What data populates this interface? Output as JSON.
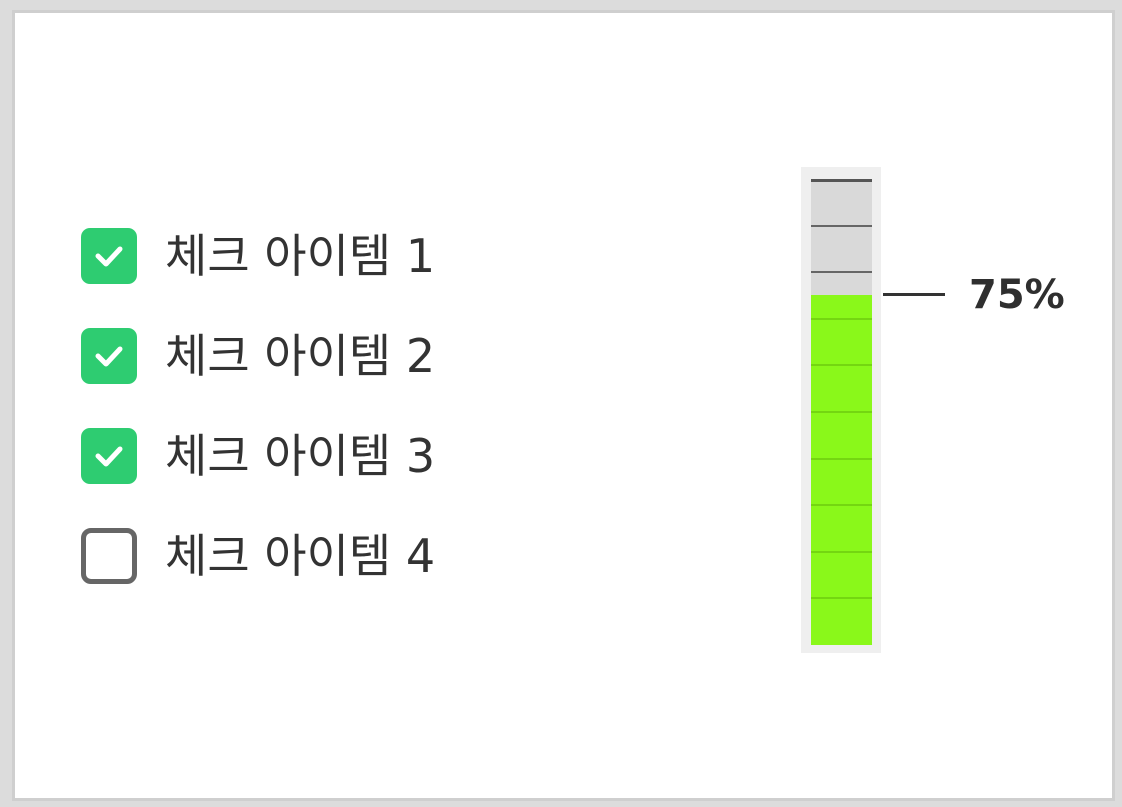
{
  "checklist": {
    "items": [
      {
        "label": "체크 아이템 1",
        "checked": true
      },
      {
        "label": "체크 아이템 2",
        "checked": true
      },
      {
        "label": "체크 아이템 3",
        "checked": true
      },
      {
        "label": "체크 아이템 4",
        "checked": false
      }
    ],
    "checked_color": "#2ecc71",
    "unchecked_border_color": "#666666",
    "check_icon": "checkmark-icon"
  },
  "gauge": {
    "value_percent": 75,
    "value_label": "75%",
    "tick_count": 10,
    "fill_color": "#8af81a",
    "track_color": "#d9d9d9"
  }
}
